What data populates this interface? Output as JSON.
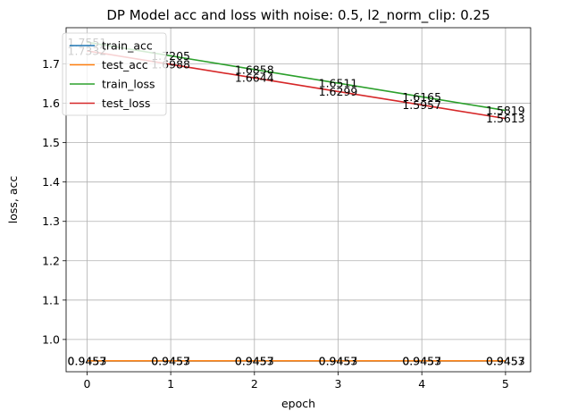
{
  "chart_data": {
    "type": "line",
    "title": "DP Model acc and loss with noise: 0.5, l2_norm_clip: 0.25",
    "xlabel": "epoch",
    "ylabel": "loss, acc",
    "x": [
      0,
      1,
      2,
      3,
      4,
      5
    ],
    "xlim": [
      -0.25,
      5.3
    ],
    "ylim": [
      0.918,
      1.792
    ],
    "xticks": [
      "0",
      "1",
      "2",
      "3",
      "4",
      "5"
    ],
    "yticks": [
      "1.0",
      "1.1",
      "1.2",
      "1.3",
      "1.4",
      "1.5",
      "1.6",
      "1.7"
    ],
    "grid": true,
    "legend_position": "top-left",
    "series": [
      {
        "name": "train_acc",
        "color": "#1f77b4",
        "values": [
          0.9453,
          0.9453,
          0.9453,
          0.9453,
          0.9453,
          0.9453
        ],
        "labels": [
          "0.9453",
          "0.9453",
          "0.9453",
          "0.9453",
          "0.9453",
          "0.9453"
        ]
      },
      {
        "name": "test_acc",
        "color": "#ff7f0e",
        "values": [
          0.9457,
          0.9457,
          0.9457,
          0.9457,
          0.9457,
          0.9457
        ],
        "labels": [
          "0.9457",
          "0.9457",
          "0.9457",
          "0.9457",
          "0.9457",
          "0.9457"
        ]
      },
      {
        "name": "train_loss",
        "color": "#2ca02c",
        "values": [
          1.7551,
          1.7205,
          1.6858,
          1.6511,
          1.6165,
          1.5819
        ],
        "labels": [
          "1.7551",
          "1.7205",
          "1.6858",
          "1.6511",
          "1.6165",
          "1.5819"
        ]
      },
      {
        "name": "test_loss",
        "color": "#d62728",
        "values": [
          1.7332,
          1.6988,
          1.6644,
          1.6299,
          1.5957,
          1.5613
        ],
        "labels": [
          "1.7332",
          "1.6988",
          "1.6644",
          "1.6299",
          "1.5957",
          "1.5613"
        ]
      }
    ]
  }
}
